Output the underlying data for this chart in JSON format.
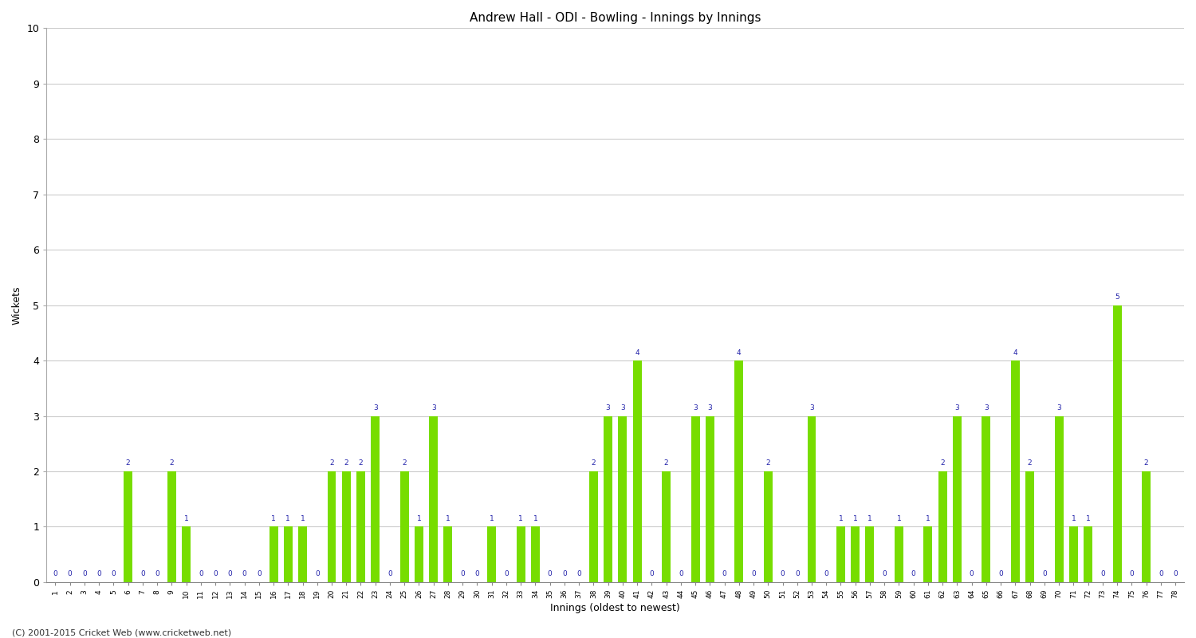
{
  "title": "Andrew Hall - ODI - Bowling - Innings by Innings",
  "xlabel": "Innings (oldest to newest)",
  "ylabel": "Wickets",
  "ylim": [
    0,
    10
  ],
  "yticks": [
    0,
    1,
    2,
    3,
    4,
    5,
    6,
    7,
    8,
    9,
    10
  ],
  "background_color": "#ffffff",
  "bar_color": "#77dd00",
  "label_color": "#2222aa",
  "footer": "(C) 2001-2015 Cricket Web (www.cricketweb.net)",
  "innings": [
    1,
    2,
    3,
    4,
    5,
    6,
    7,
    8,
    9,
    10,
    11,
    12,
    13,
    14,
    15,
    16,
    17,
    18,
    19,
    20,
    21,
    22,
    23,
    24,
    25,
    26,
    27,
    28,
    29,
    30,
    31,
    32,
    33,
    34,
    35,
    36,
    37,
    38,
    39,
    40,
    41,
    42,
    43,
    44,
    45,
    46,
    47,
    48,
    49,
    50,
    51,
    52,
    53,
    54,
    55,
    56,
    57,
    58,
    59,
    60,
    61,
    62,
    63,
    64,
    65,
    66,
    67,
    68,
    69,
    70,
    71,
    72,
    73,
    74,
    75,
    76,
    77,
    78
  ],
  "wickets": [
    0,
    0,
    0,
    0,
    0,
    2,
    0,
    0,
    2,
    1,
    0,
    0,
    0,
    0,
    0,
    1,
    1,
    1,
    0,
    2,
    2,
    2,
    3,
    0,
    2,
    1,
    3,
    1,
    0,
    0,
    1,
    0,
    1,
    1,
    0,
    0,
    0,
    2,
    3,
    3,
    4,
    0,
    2,
    0,
    3,
    3,
    0,
    4,
    0,
    2,
    0,
    0,
    3,
    0,
    1,
    1,
    1,
    0,
    1,
    0,
    1,
    2,
    3,
    0,
    3,
    0,
    4,
    2,
    0,
    3,
    1,
    1,
    0,
    5,
    0,
    2,
    0,
    0
  ]
}
